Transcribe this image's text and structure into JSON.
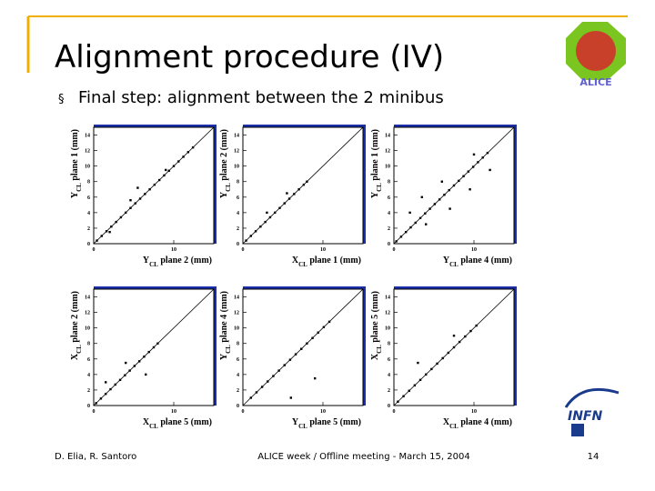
{
  "header": {
    "title": "Alignment procedure (IV)",
    "bullet": "§",
    "subtitle": "Final step: alignment between the 2 minibus"
  },
  "logos": {
    "alice": "ALICE",
    "infn": "INFN"
  },
  "footer": {
    "authors": "D. Elia, R. Santoro",
    "event": "ALICE week / Offline meeting - March 15, 2004",
    "page": "14"
  },
  "chart_data": [
    {
      "type": "scatter",
      "ylabel": [
        "Y",
        "CL",
        " plane 1 (mm)"
      ],
      "xlabel": [
        "Y",
        "CL",
        " plane 2 (mm)"
      ],
      "xlim": [
        0,
        15
      ],
      "ylim": [
        0,
        15
      ],
      "xticks": [
        0,
        10
      ],
      "yticks": [
        0,
        2,
        4,
        6,
        8,
        10,
        12,
        14
      ],
      "color": "#000000",
      "x": [
        0.4,
        1.0,
        1.6,
        2.2,
        2.8,
        3.4,
        4.0,
        4.6,
        5.2,
        5.8,
        6.4,
        7.0,
        7.6,
        8.2,
        8.8,
        9.4,
        10.0,
        10.6,
        11.2,
        11.8,
        12.4,
        5.5,
        4.6,
        9.0,
        2.0
      ],
      "y": [
        0.4,
        1.0,
        1.6,
        2.2,
        2.8,
        3.4,
        4.0,
        4.6,
        5.2,
        5.8,
        6.4,
        7.0,
        7.6,
        8.2,
        8.8,
        9.4,
        10.0,
        10.6,
        11.2,
        11.8,
        12.4,
        7.2,
        5.6,
        9.5,
        1.5
      ]
    },
    {
      "type": "scatter",
      "ylabel": [
        "Y",
        "CL",
        " plane 2 (mm)"
      ],
      "xlabel": [
        "X",
        "CL",
        " plane 1 (mm)"
      ],
      "xlim": [
        0,
        15
      ],
      "ylim": [
        0,
        15
      ],
      "xticks": [
        0,
        10
      ],
      "yticks": [
        0,
        2,
        4,
        6,
        8,
        10,
        12,
        14
      ],
      "color": "#000000",
      "x": [
        0.4,
        1.0,
        1.6,
        2.2,
        2.8,
        3.4,
        4.0,
        4.6,
        5.2,
        5.8,
        6.4,
        7.0,
        7.6,
        8.0,
        3.0,
        5.5
      ],
      "y": [
        0.4,
        1.0,
        1.6,
        2.2,
        2.8,
        3.4,
        4.0,
        4.6,
        5.2,
        5.8,
        6.4,
        7.0,
        7.6,
        8.0,
        4.0,
        6.5
      ]
    },
    {
      "type": "scatter",
      "ylabel": [
        "Y",
        "CL",
        " plane 1 (mm)"
      ],
      "xlabel": [
        "Y",
        "CL",
        " plane 4 (mm)"
      ],
      "xlim": [
        0,
        15
      ],
      "ylim": [
        0,
        15
      ],
      "xticks": [
        0,
        10
      ],
      "yticks": [
        0,
        2,
        4,
        6,
        8,
        10,
        12,
        14
      ],
      "color": "#000000",
      "x": [
        0.3,
        0.9,
        1.5,
        2.1,
        2.7,
        3.3,
        3.9,
        4.5,
        5.1,
        5.7,
        6.3,
        6.9,
        7.5,
        8.1,
        8.7,
        9.3,
        9.9,
        10.5,
        11.1,
        11.7,
        2.0,
        4.0,
        6.0,
        7.0,
        9.5,
        10.0,
        3.5,
        12.0
      ],
      "y": [
        0.3,
        0.9,
        1.5,
        2.1,
        2.7,
        3.3,
        3.9,
        4.5,
        5.1,
        5.7,
        6.3,
        6.9,
        7.5,
        8.1,
        8.7,
        9.3,
        9.9,
        10.5,
        11.1,
        11.7,
        4.0,
        2.5,
        8.0,
        4.5,
        7.0,
        11.5,
        6.0,
        9.5
      ]
    },
    {
      "type": "scatter",
      "ylabel": [
        "X",
        "CL",
        " plane 2 (mm)"
      ],
      "xlabel": [
        "X",
        "CL",
        " plane 5 (mm)"
      ],
      "xlim": [
        0,
        15
      ],
      "ylim": [
        0,
        15
      ],
      "xticks": [
        0,
        10
      ],
      "yticks": [
        0,
        2,
        4,
        6,
        8,
        10,
        12,
        14
      ],
      "color": "#000000",
      "x": [
        0.3,
        0.9,
        1.5,
        2.1,
        2.7,
        3.3,
        3.9,
        4.5,
        5.1,
        5.7,
        6.3,
        6.9,
        7.5,
        8.0,
        4.0,
        6.5,
        1.5
      ],
      "y": [
        0.3,
        0.9,
        1.5,
        2.1,
        2.7,
        3.3,
        3.9,
        4.5,
        5.1,
        5.7,
        6.3,
        6.9,
        7.5,
        8.0,
        5.5,
        4.0,
        3.0
      ]
    },
    {
      "type": "scatter",
      "ylabel": [
        "Y",
        "CL",
        " plane 4 (mm)"
      ],
      "xlabel": [
        "Y",
        "CL",
        " plane 5 (mm)"
      ],
      "xlim": [
        0,
        15
      ],
      "ylim": [
        0,
        15
      ],
      "xticks": [
        0,
        10
      ],
      "yticks": [
        0,
        2,
        4,
        6,
        8,
        10,
        12,
        14
      ],
      "color": "#000000",
      "x": [
        1.0,
        1.7,
        2.4,
        3.1,
        3.8,
        4.5,
        5.2,
        5.9,
        6.6,
        7.3,
        8.0,
        8.7,
        9.4,
        10.1,
        10.8,
        6.0,
        9.0
      ],
      "y": [
        1.0,
        1.7,
        2.4,
        3.1,
        3.8,
        4.5,
        5.2,
        5.9,
        6.6,
        7.3,
        8.0,
        8.7,
        9.4,
        10.1,
        10.8,
        1.0,
        3.5
      ]
    },
    {
      "type": "scatter",
      "ylabel": [
        "X",
        "CL",
        " plane 5 (mm)"
      ],
      "xlabel": [
        "X",
        "CL",
        " plane 4 (mm)"
      ],
      "xlim": [
        0,
        15
      ],
      "ylim": [
        0,
        15
      ],
      "xticks": [
        0,
        10
      ],
      "yticks": [
        0,
        2,
        4,
        6,
        8,
        10,
        12,
        14
      ],
      "color": "#000000",
      "x": [
        0.5,
        1.2,
        1.9,
        2.6,
        3.3,
        4.0,
        4.7,
        5.4,
        6.1,
        6.8,
        7.5,
        8.2,
        8.9,
        9.6,
        10.3,
        3.0,
        7.5
      ],
      "y": [
        0.5,
        1.2,
        1.9,
        2.6,
        3.3,
        4.0,
        4.7,
        5.4,
        6.1,
        6.8,
        7.5,
        8.2,
        8.9,
        9.6,
        10.3,
        5.5,
        9.0
      ]
    }
  ]
}
